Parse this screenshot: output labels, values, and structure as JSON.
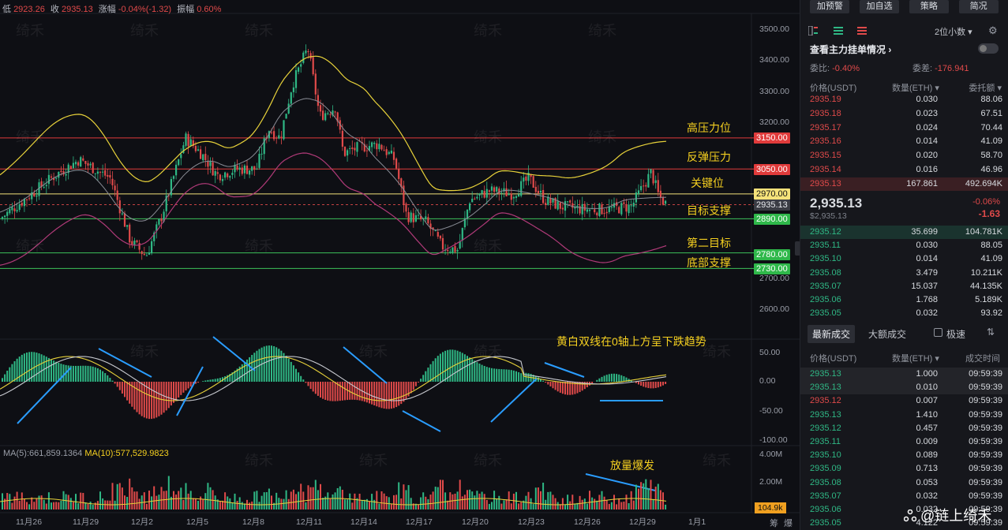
{
  "top_info": {
    "low_label": "低",
    "low_value": "2923.26",
    "close_label": "收",
    "close_value": "2935.13",
    "change_label": "涨幅",
    "change_value": "-0.04%(-1.32)",
    "amp_label": "振幅",
    "amp_value": "0.60%"
  },
  "annotations": {
    "high_pressure": "高压力位",
    "rebound_pressure": "反弹压力",
    "key_level": "关键位",
    "target_support": "目标支撑",
    "second_target": "第二目标",
    "bottom_support": "底部支撑",
    "macd_note": "黄白双线在0轴上方呈下跌趋势",
    "volume_note": "放量爆发"
  },
  "price_tags": {
    "p3150": "3150.00",
    "p3050": "3050.00",
    "p2970": "2970.00",
    "current": "2935.13",
    "p2890": "2890.00",
    "p2780": "2780.00",
    "p2730": "2730.00"
  },
  "y_ticks": [
    "3500.00",
    "3400.00",
    "3300.00",
    "3200.00",
    "2700.00",
    "2600.00"
  ],
  "macd_ticks": [
    "50.00",
    "0.00",
    "-50.00",
    "-100.00"
  ],
  "vol_ticks": [
    "4.00M",
    "2.00M"
  ],
  "vol_current": "104.9k",
  "x_ticks": [
    "11月26",
    "11月29",
    "12月2",
    "12月5",
    "12月8",
    "12月11",
    "12月14",
    "12月17",
    "12月20",
    "12月23",
    "12月26",
    "12月29",
    "1月1"
  ],
  "axis_icons": {
    "chip": "筹",
    "burst": "爆"
  },
  "ma_info": {
    "ma5": "MA(5):661,859.1364",
    "ma10": "MA(10):577,529.9823"
  },
  "watermark": "绮禾",
  "logo_text": "@链上绮禾",
  "right_panel": {
    "buttons": [
      "加预警",
      "加自选",
      "策略",
      "简况"
    ],
    "decimals": "2位小数",
    "main_order_title": "查看主力挂单情况",
    "ratio_label": "委比:",
    "ratio_value": "-0.40%",
    "diff_label": "委差:",
    "diff_value": "-176.941",
    "headers": {
      "price": "价格(USDT)",
      "qty": "数量(ETH)",
      "total": "委托额"
    },
    "asks": [
      {
        "price": "2935.19",
        "qty": "0.030",
        "total": "88.06"
      },
      {
        "price": "2935.18",
        "qty": "0.023",
        "total": "67.51"
      },
      {
        "price": "2935.17",
        "qty": "0.024",
        "total": "70.44"
      },
      {
        "price": "2935.16",
        "qty": "0.014",
        "total": "41.09"
      },
      {
        "price": "2935.15",
        "qty": "0.020",
        "total": "58.70"
      },
      {
        "price": "2935.14",
        "qty": "0.016",
        "total": "46.96"
      },
      {
        "price": "2935.13",
        "qty": "167.861",
        "total": "492.694K"
      }
    ],
    "last_price": "2,935.13",
    "last_price_sub": "$2,935.13",
    "change_pct": "-0.06%",
    "change_val": "-1.63",
    "bids": [
      {
        "price": "2935.12",
        "qty": "35.699",
        "total": "104.781K"
      },
      {
        "price": "2935.11",
        "qty": "0.030",
        "total": "88.05"
      },
      {
        "price": "2935.10",
        "qty": "0.014",
        "total": "41.09"
      },
      {
        "price": "2935.08",
        "qty": "3.479",
        "total": "10.211K"
      },
      {
        "price": "2935.07",
        "qty": "15.037",
        "total": "44.135K"
      },
      {
        "price": "2935.06",
        "qty": "1.768",
        "total": "5.189K"
      },
      {
        "price": "2935.05",
        "qty": "0.032",
        "total": "93.92"
      }
    ],
    "tabs": {
      "latest": "最新成交",
      "large": "大额成交",
      "fast": "极速"
    },
    "trade_headers": {
      "price": "价格(USDT)",
      "qty": "数量(ETH)",
      "time": "成交时间"
    },
    "trades": [
      {
        "price": "2935.13",
        "qty": "1.000",
        "time": "09:59:39",
        "side": "buy"
      },
      {
        "price": "2935.13",
        "qty": "0.010",
        "time": "09:59:39",
        "side": "buy"
      },
      {
        "price": "2935.12",
        "qty": "0.007",
        "time": "09:59:39",
        "side": "sell"
      },
      {
        "price": "2935.13",
        "qty": "1.410",
        "time": "09:59:39",
        "side": "buy"
      },
      {
        "price": "2935.12",
        "qty": "0.457",
        "time": "09:59:39",
        "side": "buy"
      },
      {
        "price": "2935.11",
        "qty": "0.009",
        "time": "09:59:39",
        "side": "buy"
      },
      {
        "price": "2935.10",
        "qty": "0.089",
        "time": "09:59:39",
        "side": "buy"
      },
      {
        "price": "2935.09",
        "qty": "0.713",
        "time": "09:59:39",
        "side": "buy"
      },
      {
        "price": "2935.08",
        "qty": "0.053",
        "time": "09:59:39",
        "side": "buy"
      },
      {
        "price": "2935.07",
        "qty": "0.032",
        "time": "09:59:39",
        "side": "buy"
      },
      {
        "price": "2935.06",
        "qty": "0.032",
        "time": "09:59:39",
        "side": "buy"
      },
      {
        "price": "2935.05",
        "qty": "4.122",
        "time": "09:59:39",
        "side": "buy"
      }
    ]
  },
  "colors": {
    "up": "#2fb885",
    "down": "#e04a4a",
    "ma_yellow": "#f5d020",
    "bg": "#0e0f14"
  }
}
